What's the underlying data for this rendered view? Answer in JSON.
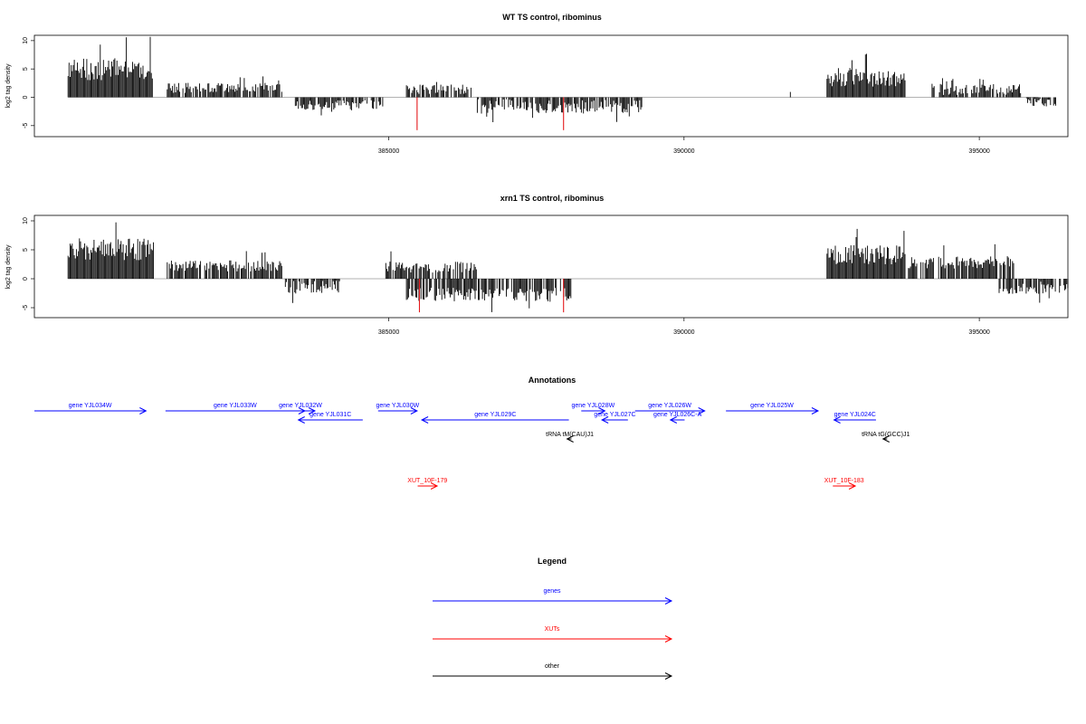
{
  "chart_data": [
    {
      "type": "bar",
      "title": "WT TS control, ribominus",
      "ylabel": "log2 tag density",
      "ylim": [
        -7,
        10.5
      ],
      "xlim": [
        379000,
        396500
      ],
      "yticks": [
        10,
        5,
        0,
        -5
      ],
      "xticks": [
        385000,
        390000,
        395000
      ],
      "colors": {
        "data": "#000000",
        "highlight": "#e41a1c",
        "baseline": "#999999"
      },
      "regions": [
        {
          "start": 379570,
          "end": 381000,
          "strand": "+",
          "level": 4.5,
          "var": 1.8
        },
        {
          "start": 381250,
          "end": 383190,
          "strand": "+",
          "level": 1.5,
          "var": 0.8
        },
        {
          "start": 383400,
          "end": 384900,
          "strand": "-",
          "level": -1.6,
          "var": 0.8
        },
        {
          "start": 385300,
          "end": 386400,
          "strand": "+",
          "level": 1.2,
          "var": 0.8
        },
        {
          "start": 386500,
          "end": 389300,
          "strand": "-",
          "level": -1.8,
          "var": 1.1
        },
        {
          "start": 391800,
          "end": 391810,
          "strand": "+",
          "level": 0.9,
          "var": 0.1
        },
        {
          "start": 392420,
          "end": 393750,
          "strand": "+",
          "level": 3.2,
          "var": 1.5
        },
        {
          "start": 394200,
          "end": 395700,
          "strand": "+",
          "level": 1.2,
          "var": 0.9
        },
        {
          "start": 395800,
          "end": 396300,
          "strand": "-",
          "level": -1.0,
          "var": 0.7
        }
      ],
      "highlights": [
        {
          "x": 385480,
          "y": -5.8
        },
        {
          "x": 387960,
          "y": -5.8
        }
      ]
    },
    {
      "type": "bar",
      "title": "xrn1 TS control, ribominus",
      "ylabel": "log2 tag density",
      "ylim": [
        -7,
        10.5
      ],
      "xlim": [
        379000,
        396500
      ],
      "yticks": [
        10,
        5,
        0,
        -5
      ],
      "xticks": [
        385000,
        390000,
        395000
      ],
      "colors": {
        "data": "#000000",
        "highlight": "#e41a1c",
        "baseline": "#999999"
      },
      "regions": [
        {
          "start": 379570,
          "end": 381030,
          "strand": "+",
          "level": 4.8,
          "var": 1.8
        },
        {
          "start": 381250,
          "end": 383200,
          "strand": "+",
          "level": 2.0,
          "var": 0.9
        },
        {
          "start": 383250,
          "end": 384200,
          "strand": "-",
          "level": -1.8,
          "var": 1.1
        },
        {
          "start": 384950,
          "end": 386500,
          "strand": "+",
          "level": 1.8,
          "var": 0.9
        },
        {
          "start": 385300,
          "end": 388100,
          "strand": "-",
          "level": -3.0,
          "var": 1.1
        },
        {
          "start": 392420,
          "end": 393750,
          "strand": "+",
          "level": 3.8,
          "var": 1.5
        },
        {
          "start": 393800,
          "end": 395600,
          "strand": "+",
          "level": 2.6,
          "var": 1.0
        },
        {
          "start": 395300,
          "end": 396500,
          "strand": "-",
          "level": -1.8,
          "var": 1.0
        }
      ],
      "highlights": [
        {
          "x": 385520,
          "y": -5.8
        },
        {
          "x": 387960,
          "y": -5.8
        }
      ]
    }
  ],
  "annotations": {
    "title": "Annotations",
    "genes": [
      {
        "label": "gene YJL034W",
        "start": 379000,
        "end": 380890,
        "strand": "+",
        "row": 0
      },
      {
        "label": "gene YJL033W",
        "start": 381220,
        "end": 383580,
        "strand": "+",
        "row": 0
      },
      {
        "label": "gene YJL032W",
        "start": 383260,
        "end": 383750,
        "strand": "+",
        "row": 0
      },
      {
        "label": "gene YJL031C",
        "start": 383470,
        "end": 384560,
        "strand": "-",
        "row": 1
      },
      {
        "label": "gene YJL030W",
        "start": 384820,
        "end": 385480,
        "strand": "+",
        "row": 0
      },
      {
        "label": "gene YJL029C",
        "start": 385560,
        "end": 388050,
        "strand": "-",
        "row": 1
      },
      {
        "label": "gene YJL028W",
        "start": 388260,
        "end": 388660,
        "strand": "+",
        "row": 0
      },
      {
        "label": "gene YJL027C",
        "start": 388610,
        "end": 389050,
        "strand": "-",
        "row": 1
      },
      {
        "label": "gene YJL026W",
        "start": 389170,
        "end": 390350,
        "strand": "+",
        "row": 0
      },
      {
        "label": "gene YJL026C-A",
        "start": 389770,
        "end": 390010,
        "strand": "-",
        "row": 1
      },
      {
        "label": "gene YJL025W",
        "start": 390710,
        "end": 392270,
        "strand": "+",
        "row": 0
      },
      {
        "label": "gene YJL024C",
        "start": 392540,
        "end": 393250,
        "strand": "-",
        "row": 1
      }
    ],
    "other": [
      {
        "label": "tRNA tM(CAU)J1",
        "start": 388020,
        "end": 388095,
        "strand": "-",
        "row": 2
      },
      {
        "label": "tRNA tG(GCC)J1",
        "start": 393370,
        "end": 393440,
        "strand": "-",
        "row": 2
      }
    ],
    "xuts": [
      {
        "label": "XUT_10F-179",
        "start": 385490,
        "end": 385820,
        "strand": "+",
        "row": 3
      },
      {
        "label": "XUT_10F-183",
        "start": 392520,
        "end": 392900,
        "strand": "+",
        "row": 3
      }
    ]
  },
  "legend": {
    "title": "Legend",
    "items": [
      {
        "label": "genes",
        "color": "#0000ff"
      },
      {
        "label": "XUTs",
        "color": "#ff0000"
      },
      {
        "label": "other",
        "color": "#000000"
      }
    ]
  }
}
